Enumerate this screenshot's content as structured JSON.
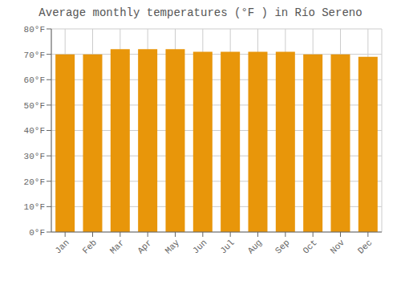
{
  "chart_data": {
    "type": "bar",
    "title": "Average monthly temperatures (°F ) in Río Sereno",
    "categories": [
      "Jan",
      "Feb",
      "Mar",
      "Apr",
      "May",
      "Jun",
      "Jul",
      "Aug",
      "Sep",
      "Oct",
      "Nov",
      "Dec"
    ],
    "values": [
      70,
      70,
      72,
      72,
      72,
      71,
      71,
      71,
      71,
      70,
      70,
      69
    ],
    "color": "#E8960A",
    "ylim": [
      0,
      80
    ],
    "yticks": [
      {
        "value": 0,
        "label": "0°F"
      },
      {
        "value": 10,
        "label": "10°F"
      },
      {
        "value": 20,
        "label": "20°F"
      },
      {
        "value": 30,
        "label": "30°F"
      },
      {
        "value": 40,
        "label": "40°F"
      },
      {
        "value": 50,
        "label": "50°F"
      },
      {
        "value": 60,
        "label": "60°F"
      },
      {
        "value": 70,
        "label": "70°F"
      },
      {
        "value": 80,
        "label": "80°F"
      }
    ],
    "grid": true
  }
}
